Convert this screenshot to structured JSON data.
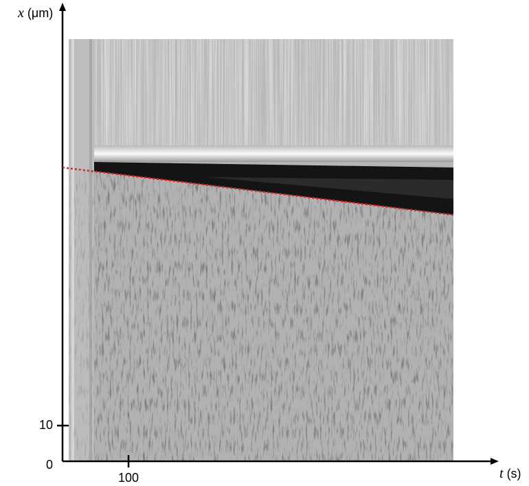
{
  "chart_data": {
    "type": "kymograph",
    "xlabel_var": "t",
    "xlabel_unit": "(s)",
    "ylabel_var": "x",
    "ylabel_unit": "(μm)",
    "xlim": [
      0,
      657
    ],
    "ylim": [
      0,
      127.7
    ],
    "xticks": [
      100
    ],
    "yticks": [
      0,
      10
    ],
    "line": {
      "color": "#e02020",
      "x": [
        0,
        593
      ],
      "y": [
        82.3,
        69
      ]
    }
  }
}
